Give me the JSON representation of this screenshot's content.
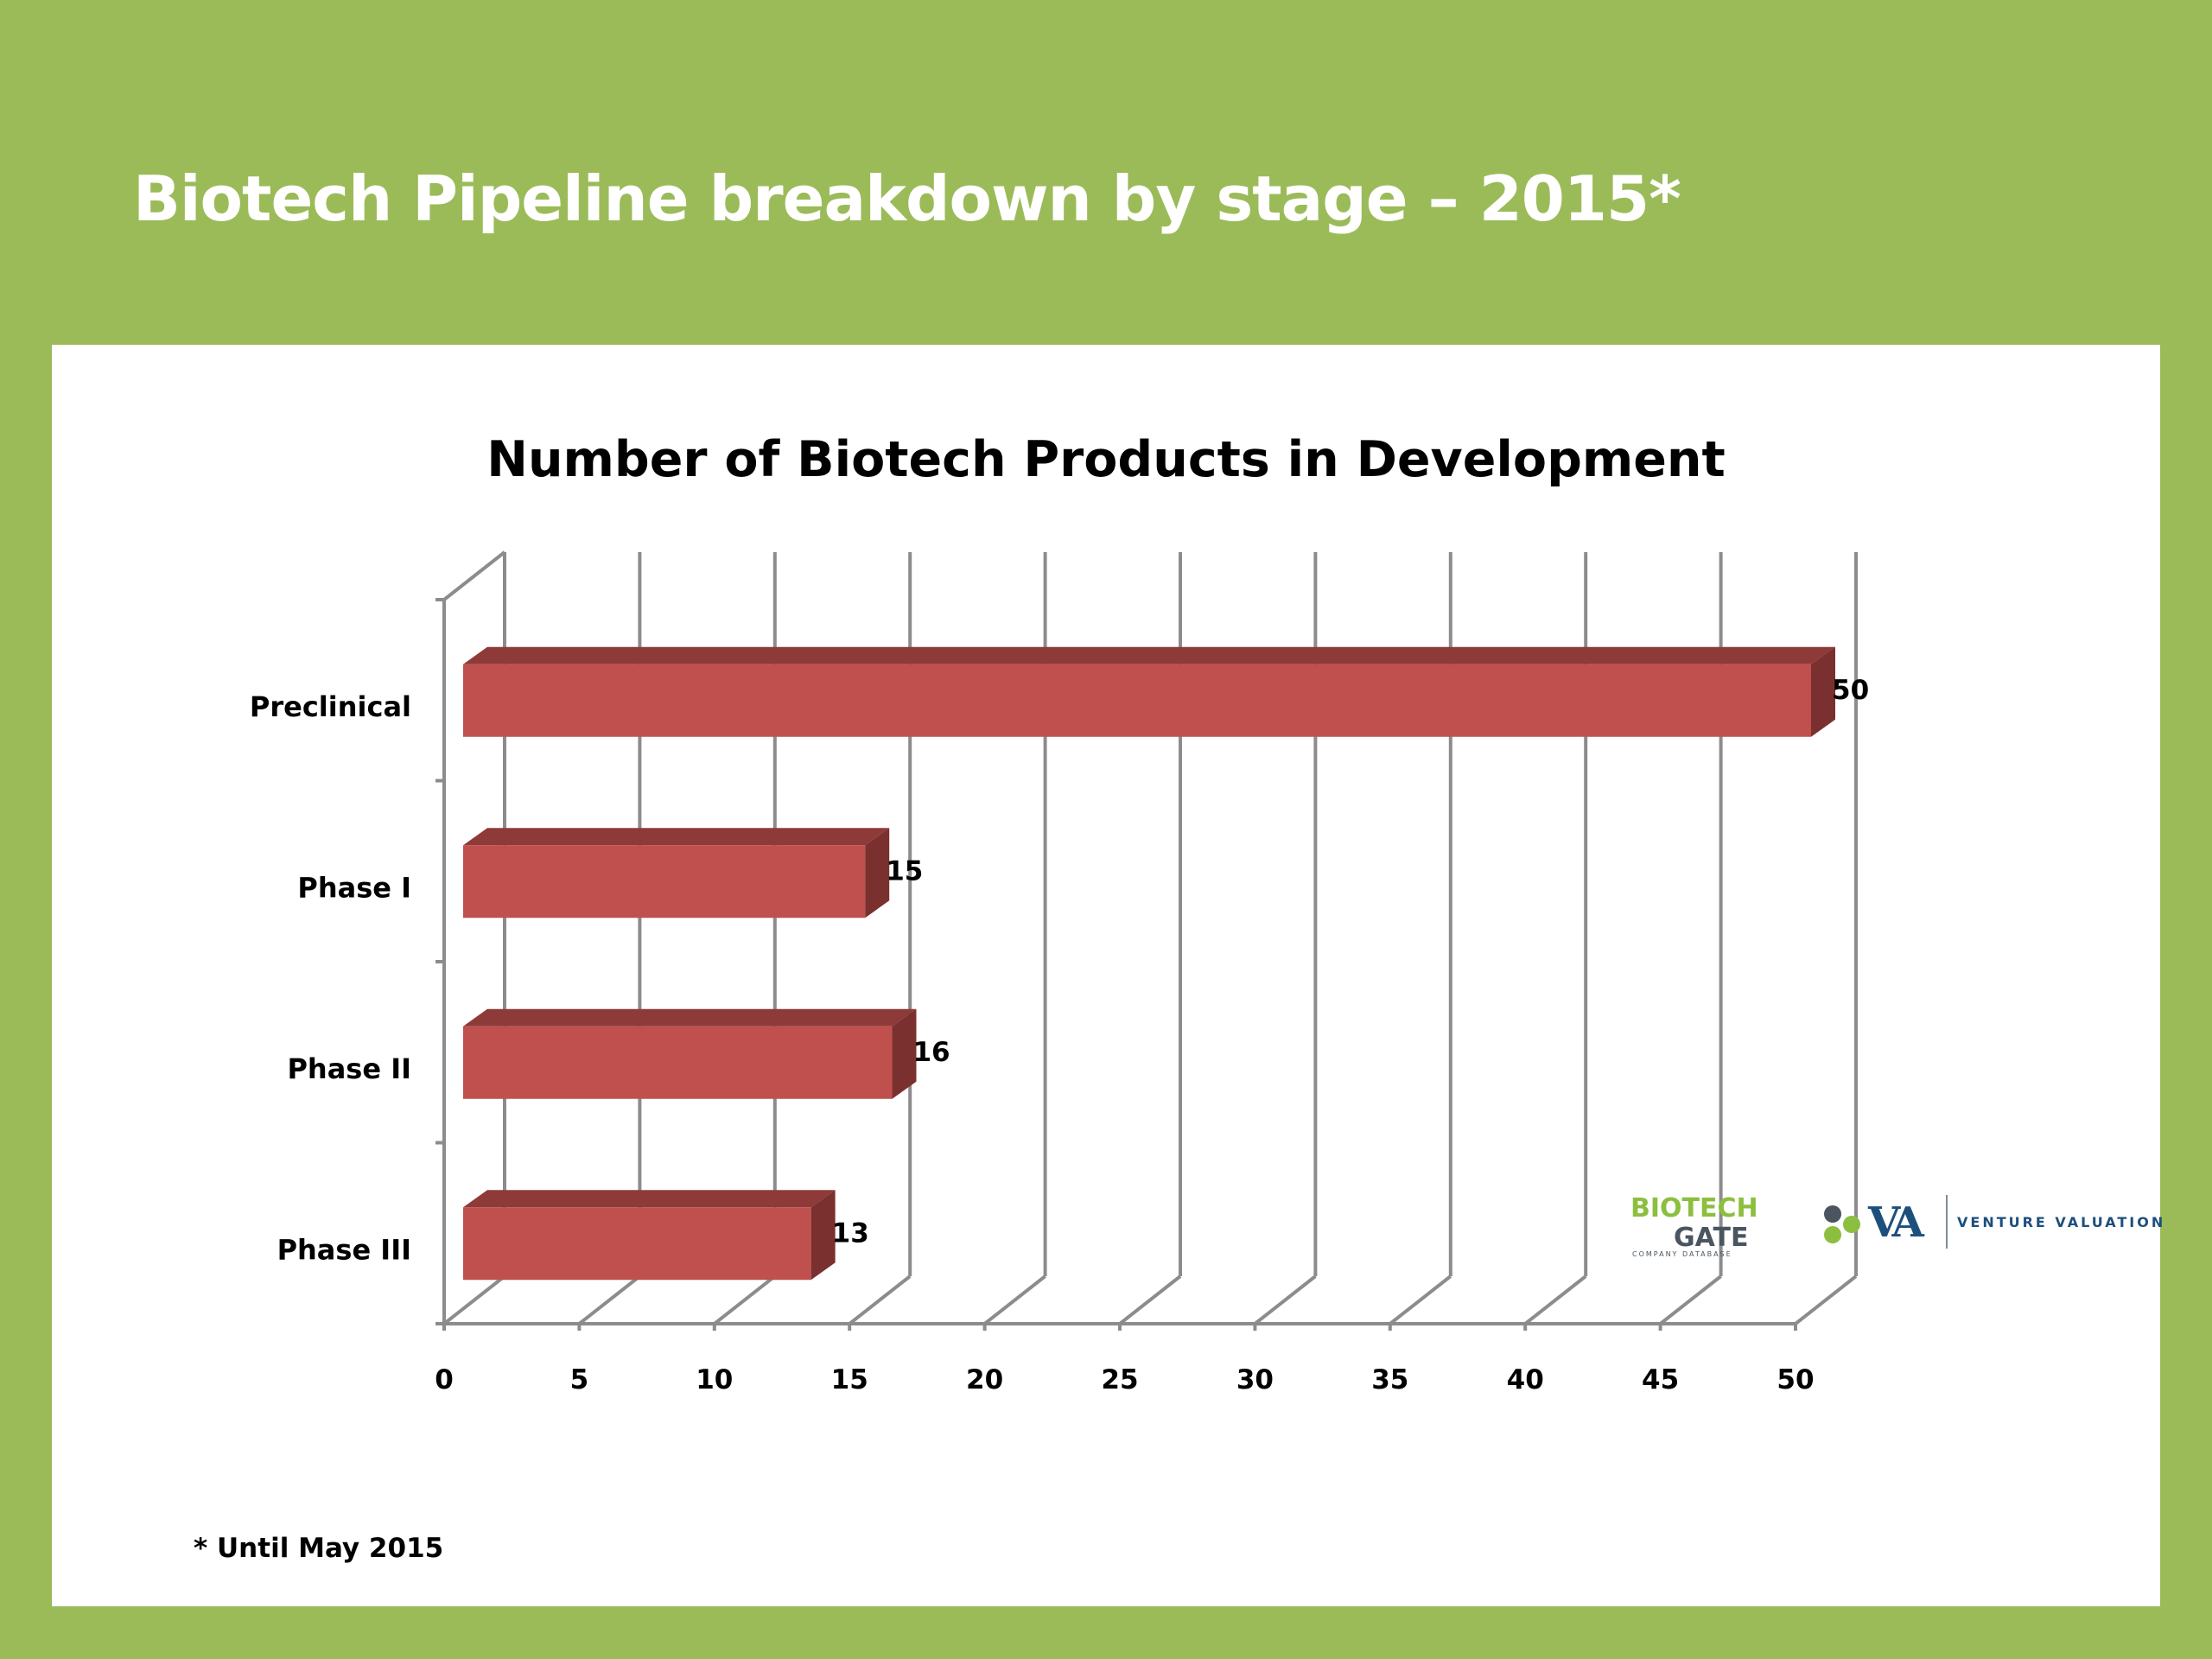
{
  "slide": {
    "title": "Biotech Pipeline breakdown by stage – 2015*",
    "footnote": "* Until May 2015"
  },
  "logos": {
    "biotech_gate": {
      "line1": "BIOTECH",
      "line2": "GATE",
      "tagline": "COMPANY DATABASE"
    },
    "venture_valuation": {
      "mark": "VA",
      "name": "VENTURE VALUATION"
    }
  },
  "colors": {
    "background": "#9bbb59",
    "bar_front": "#c0504d",
    "bar_top": "#8e3a38",
    "bar_side": "#7a302e",
    "gridline": "#8c8c8c"
  },
  "chart_data": {
    "type": "bar",
    "orientation": "horizontal",
    "three_d": true,
    "title": "Number of Biotech Products in Development",
    "xlabel": "",
    "ylabel": "",
    "categories": [
      "Preclinical",
      "Phase I",
      "Phase II",
      "Phase III"
    ],
    "values": [
      50,
      15,
      16,
      13
    ],
    "data_labels": [
      "50",
      "15",
      "16",
      "13"
    ],
    "xlim": [
      0,
      50
    ],
    "xticks": [
      "0",
      "5",
      "10",
      "15",
      "20",
      "25",
      "30",
      "35",
      "40",
      "45",
      "50"
    ],
    "grid": true,
    "legend": "none"
  }
}
